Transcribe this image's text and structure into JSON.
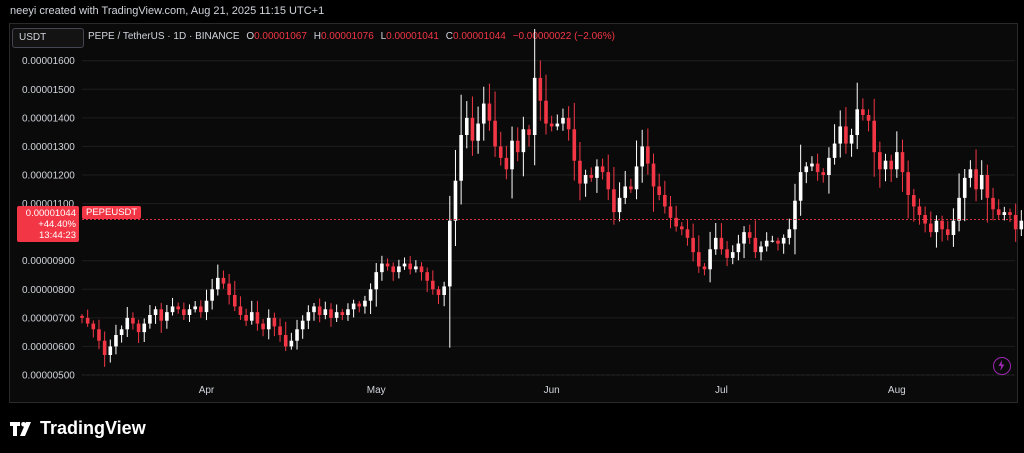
{
  "header": {
    "credit": "neeyi created with TradingView.com, Aug 21, 2025 11:15 UTC+1",
    "currency": "USDT"
  },
  "legend": {
    "symbol": "PEPE / TetherUS · 1D · BINANCE",
    "o_label": "O",
    "o_value": "0.00001067",
    "h_label": "H",
    "h_value": "0.00001076",
    "l_label": "L",
    "l_value": "0.00001041",
    "c_label": "C",
    "c_value": "0.00001044",
    "change": "−0.00000022 (−2.06%)"
  },
  "price_tag": {
    "price": "0.00001044",
    "change_pct": "+44.40%",
    "countdown": "13:44:23",
    "symbol": "PEPEUSDT"
  },
  "brand": {
    "name": "TradingView"
  },
  "colors": {
    "up": "#ffffff",
    "down": "#f23645",
    "background": "#000000",
    "grid": "#1e1e1e",
    "text": "#d1d4dc"
  },
  "icons": {
    "flash": "lightning-icon",
    "logo": "tradingview-logo-icon"
  },
  "chart_data": {
    "type": "candlestick",
    "y_axis": {
      "min": 5e-06,
      "max": 1.62e-05,
      "ticks": [
        {
          "value": 1.6e-05,
          "label": "0.00001600"
        },
        {
          "value": 1.5e-05,
          "label": "0.00001500"
        },
        {
          "value": 1.4e-05,
          "label": "0.00001400"
        },
        {
          "value": 1.3e-05,
          "label": "0.00001300"
        },
        {
          "value": 1.2e-05,
          "label": "0.00001200"
        },
        {
          "value": 1.1e-05,
          "label": "0.00001100"
        },
        {
          "value": 9e-06,
          "label": "0.00000900"
        },
        {
          "value": 8e-06,
          "label": "0.00000800"
        },
        {
          "value": 7e-06,
          "label": "0.00000700"
        },
        {
          "value": 6e-06,
          "label": "0.00000600"
        },
        {
          "value": 5e-06,
          "label": "0.00000500"
        }
      ]
    },
    "x_axis": {
      "start": "2025-03-10",
      "end": "2025-08-21",
      "ticks": [
        {
          "date": "2025-04-01",
          "label": "Apr"
        },
        {
          "date": "2025-05-01",
          "label": "May"
        },
        {
          "date": "2025-06-01",
          "label": "Jun"
        },
        {
          "date": "2025-07-01",
          "label": "Jul"
        },
        {
          "date": "2025-08-01",
          "label": "Aug"
        }
      ]
    },
    "last_price": 1.044e-05,
    "start_date": "2025-03-10",
    "closes": [
      7e-06,
      6.8e-06,
      6.6e-06,
      6.2e-06,
      5.7e-06,
      6e-06,
      6.4e-06,
      6.6e-06,
      7e-06,
      6.8e-06,
      6.5e-06,
      6.8e-06,
      7.1e-06,
      7.3e-06,
      6.9e-06,
      7.2e-06,
      7.4e-06,
      7.3e-06,
      7.1e-06,
      7.3e-06,
      7.4e-06,
      7.2e-06,
      7.6e-06,
      8e-06,
      8.4e-06,
      8.2e-06,
      7.8e-06,
      7.4e-06,
      7.1e-06,
      6.9e-06,
      7.2e-06,
      6.8e-06,
      6.6e-06,
      7e-06,
      6.7e-06,
      6.4e-06,
      6e-06,
      6.2e-06,
      6.6e-06,
      6.9e-06,
      7.2e-06,
      7.4e-06,
      7.1e-06,
      7.3e-06,
      7e-06,
      7.2e-06,
      7.1e-06,
      7.3e-06,
      7.5e-06,
      7.4e-06,
      7.6e-06,
      8e-06,
      8.6e-06,
      8.9e-06,
      8.8e-06,
      8.6e-06,
      8.8e-06,
      8.9e-06,
      8.7e-06,
      8.8e-06,
      8.6e-06,
      8.3e-06,
      8e-06,
      7.8e-06,
      8.1e-06,
      1.04e-05,
      1.18e-05,
      1.34e-05,
      1.4e-05,
      1.32e-05,
      1.38e-05,
      1.45e-05,
      1.39e-05,
      1.3e-05,
      1.26e-05,
      1.22e-05,
      1.32e-05,
      1.28e-05,
      1.36e-05,
      1.34e-05,
      1.54e-05,
      1.46e-05,
      1.38e-05,
      1.37e-05,
      1.38e-05,
      1.4e-05,
      1.36e-05,
      1.25e-05,
      1.17e-05,
      1.2e-05,
      1.19e-05,
      1.23e-05,
      1.21e-05,
      1.15e-05,
      1.07e-05,
      1.12e-05,
      1.16e-05,
      1.15e-05,
      1.23e-05,
      1.3e-05,
      1.24e-05,
      1.16e-05,
      1.13e-05,
      1.09e-05,
      1.05e-05,
      1.02e-05,
      1.01e-05,
      9.8e-06,
      9.3e-06,
      8.8e-06,
      8.7e-06,
      9.4e-06,
      9.8e-06,
      9.4e-06,
      9.1e-06,
      9.3e-06,
      9.6e-06,
      1e-05,
      9.8e-06,
      9.3e-06,
      9.5e-06,
      9.7e-06,
      9.7e-06,
      9.6e-06,
      9.8e-06,
      1.01e-05,
      1.11e-05,
      1.21e-05,
      1.23e-05,
      1.24e-05,
      1.21e-05,
      1.2e-05,
      1.26e-05,
      1.31e-05,
      1.37e-05,
      1.31e-05,
      1.34e-05,
      1.43e-05,
      1.41e-05,
      1.39e-05,
      1.28e-05,
      1.22e-05,
      1.25e-05,
      1.22e-05,
      1.28e-05,
      1.21e-05,
      1.13e-05,
      1.09e-05,
      1.06e-05,
      1.03e-05,
      1e-05,
      1.04e-05,
      1.01e-05,
      9.9e-06,
      1.04e-05,
      1.12e-05,
      1.19e-05,
      1.22e-05,
      1.15e-05,
      1.2e-05,
      1.12e-05,
      1.08e-05,
      1.06e-05,
      1.07e-05,
      1.06e-05,
      1.01e-05,
      1.04e-05
    ]
  }
}
